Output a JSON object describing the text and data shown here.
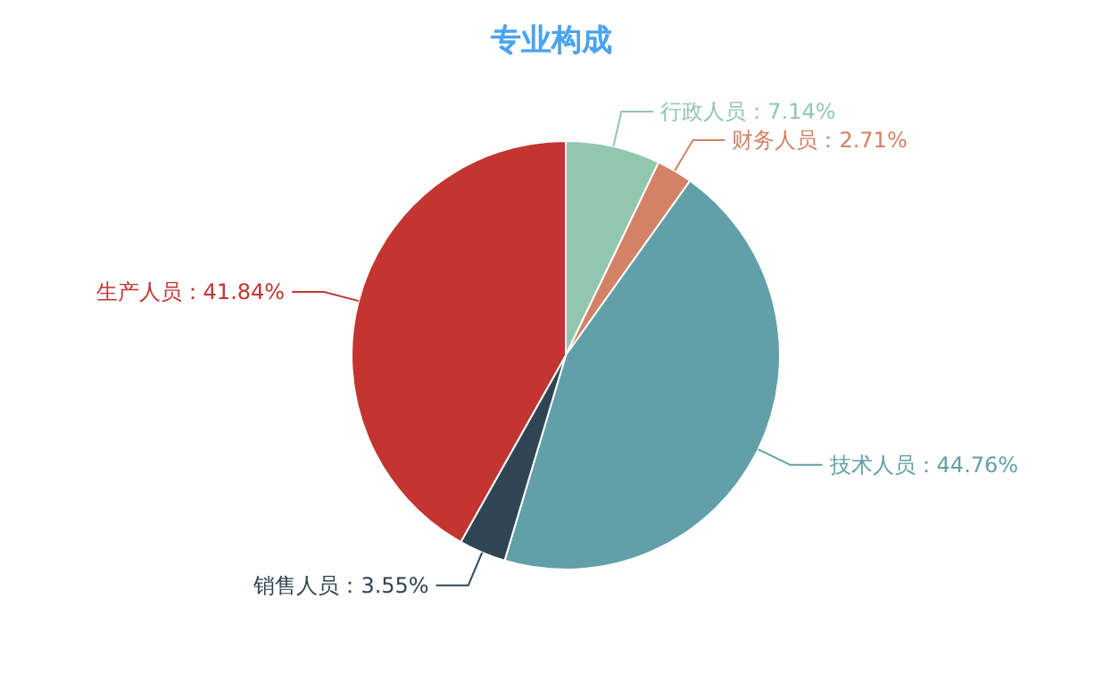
{
  "chart_data": {
    "type": "pie",
    "title": "专业构成",
    "categories": [
      "行政人员",
      "财务人员",
      "技术人员",
      "销售人员",
      "生产人员"
    ],
    "values": [
      7.14,
      2.71,
      44.76,
      3.55,
      41.84
    ],
    "colors": [
      "#91c7ae",
      "#d48265",
      "#61a0a8",
      "#2f4554",
      "#c23531"
    ],
    "value_labels": [
      "：7.14%",
      "：2.71%",
      "：44.76%",
      "：3.55%",
      "：41.84%"
    ]
  }
}
